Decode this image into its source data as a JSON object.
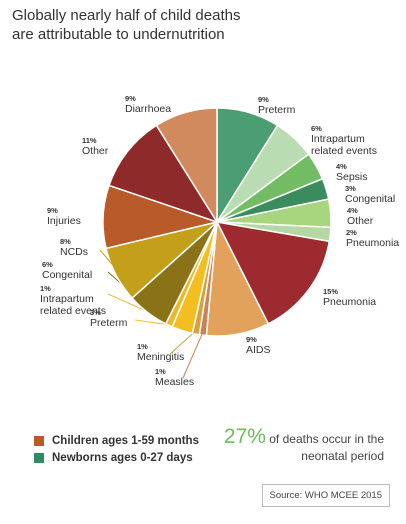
{
  "title_line1": "Globally nearly half of child deaths",
  "title_line2": "are attributable to undernutrition",
  "legend": [
    {
      "label": "Children ages 1-59 months",
      "color": "#b85a2a"
    },
    {
      "label": "Newborns ages 0-27 days",
      "color": "#2e8b64"
    }
  ],
  "highlight": {
    "big": "27%",
    "text1": " of deaths occur in the",
    "text2": "neonatal period"
  },
  "source": "Source: WHO MCEE 2015",
  "chart_data": {
    "type": "pie",
    "slices": [
      {
        "label": "Preterm",
        "pct": "9%",
        "value": 9,
        "group": "newborn",
        "color": "#4a9e72"
      },
      {
        "label": "Intrapartum related events",
        "pct": "6%",
        "value": 6,
        "group": "newborn",
        "color": "#b9dcb2"
      },
      {
        "label": "Sepsis",
        "pct": "4%",
        "value": 4,
        "group": "newborn",
        "color": "#72bd64"
      },
      {
        "label": "Congenital",
        "pct": "3%",
        "value": 3,
        "group": "newborn",
        "color": "#3a8c5e"
      },
      {
        "label": "Other",
        "pct": "4%",
        "value": 4,
        "group": "newborn",
        "color": "#a8d67e"
      },
      {
        "label": "Pneumonia",
        "pct": "2%",
        "value": 2,
        "group": "newborn",
        "color": "#b5d7a4"
      },
      {
        "label": "Pneumonia",
        "pct": "15%",
        "value": 15,
        "group": "child",
        "color": "#9c2a2f"
      },
      {
        "label": "AIDS",
        "pct": "9%",
        "value": 9,
        "group": "child",
        "color": "#e2a25b"
      },
      {
        "label": "Measles",
        "pct": "1%",
        "value": 1,
        "group": "child",
        "color": "#c7835a"
      },
      {
        "label": "Meningitis",
        "pct": "1%",
        "value": 1,
        "group": "child",
        "color": "#d9a03c"
      },
      {
        "label": "Preterm",
        "pct": "3%",
        "value": 3,
        "group": "child",
        "color": "#f2be22"
      },
      {
        "label": "Intrapartum related events",
        "pct": "1%",
        "value": 1,
        "group": "child",
        "color": "#e8b92e"
      },
      {
        "label": "Congenital",
        "pct": "6%",
        "value": 6,
        "group": "child",
        "color": "#8a7218"
      },
      {
        "label": "NCDs",
        "pct": "8%",
        "value": 8,
        "group": "child",
        "color": "#c4a01a"
      },
      {
        "label": "Injuries",
        "pct": "9%",
        "value": 9,
        "group": "child",
        "color": "#b85a2a"
      },
      {
        "label": "Other",
        "pct": "11%",
        "value": 11,
        "group": "child",
        "color": "#8f2a2b"
      },
      {
        "label": "Diarrhoea",
        "pct": "9%",
        "value": 9,
        "group": "child",
        "color": "#d08a5e"
      }
    ]
  }
}
